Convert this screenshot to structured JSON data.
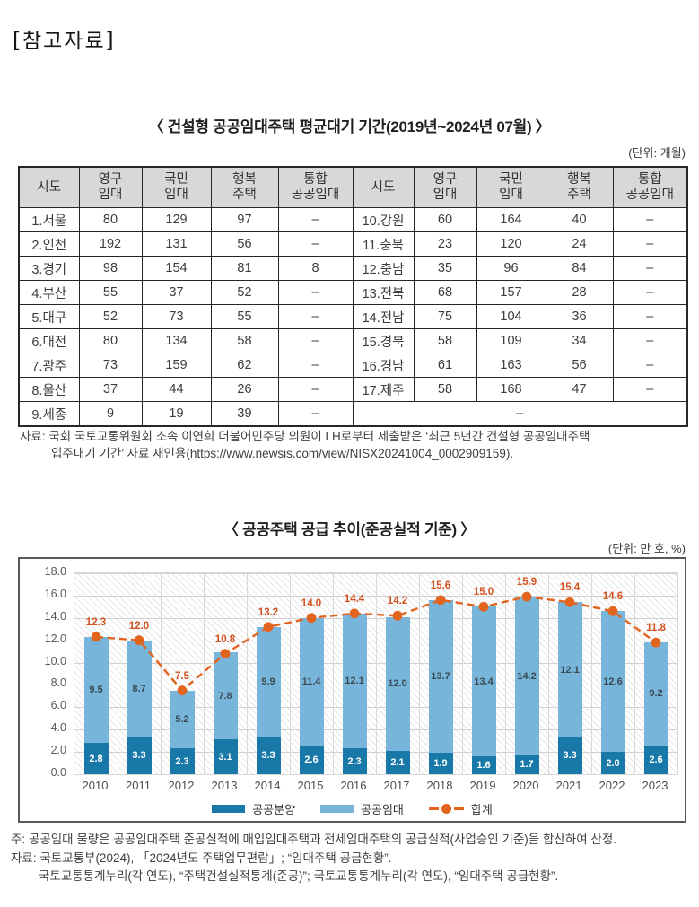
{
  "page": {
    "ref_label": "[참고자료]"
  },
  "table_section": {
    "title": "〈 건설형 공공임대주택 평균대기 기간(2019년~2024년 07월) 〉",
    "unit": "(단위: 개월)",
    "col_headers": [
      {
        "lines": [
          "시도"
        ]
      },
      {
        "lines": [
          "영구",
          "임대"
        ]
      },
      {
        "lines": [
          "국민",
          "임대"
        ]
      },
      {
        "lines": [
          "행복",
          "주택"
        ]
      },
      {
        "lines": [
          "통합",
          "공공임대"
        ]
      }
    ],
    "left_rows": [
      [
        "1.서울",
        "80",
        "129",
        "97",
        "–"
      ],
      [
        "2.인천",
        "192",
        "131",
        "56",
        "–"
      ],
      [
        "3.경기",
        "98",
        "154",
        "81",
        "8"
      ],
      [
        "4.부산",
        "55",
        "37",
        "52",
        "–"
      ],
      [
        "5.대구",
        "52",
        "73",
        "55",
        "–"
      ],
      [
        "6.대전",
        "80",
        "134",
        "58",
        "–"
      ],
      [
        "7.광주",
        "73",
        "159",
        "62",
        "–"
      ],
      [
        "8.울산",
        "37",
        "44",
        "26",
        "–"
      ],
      [
        "9.세종",
        "9",
        "19",
        "39",
        "–"
      ]
    ],
    "right_rows": [
      [
        "10.강원",
        "60",
        "164",
        "40",
        "–"
      ],
      [
        "11.충북",
        "23",
        "120",
        "24",
        "–"
      ],
      [
        "12.충남",
        "35",
        "96",
        "84",
        "–"
      ],
      [
        "13.전북",
        "68",
        "157",
        "28",
        "–"
      ],
      [
        "14.전남",
        "75",
        "104",
        "36",
        "–"
      ],
      [
        "15.경북",
        "58",
        "109",
        "34",
        "–"
      ],
      [
        "16.경남",
        "61",
        "163",
        "56",
        "–"
      ],
      [
        "17.제주",
        "58",
        "168",
        "47",
        "–"
      ]
    ],
    "right_footer": "–",
    "source_lines": [
      "자료: 국회 국토교통위원회 소속 이연희 더불어민주당 의원이 LH로부터 제출받은 ‘최근 5년간 건설형 공공임대주택",
      "입주대기 기간’ 자료 재인용(https://www.newsis.com/view/NISX20241004_0002909159)."
    ]
  },
  "chart_section": {
    "title": "〈 공공주택 공급 추이(준공실적 기준) 〉",
    "unit": "(단위: 만 호, %)",
    "notes": [
      "주: 공공임대 물량은 공공임대주택 준공실적에 매입임대주택과 전세임대주택의 공급실적(사업승인 기준)을 합산하여 산정.",
      "자료: 국토교통부(2024), 「2024년도 주택업무편람」; “임대주택 공급현황”.",
      "국토교통통계누리(각 연도), “주택건설실적통계(준공)”; 국토교통통계누리(각 연도), “임대주택 공급현황”."
    ]
  },
  "chart_data": {
    "type": "bar",
    "stacked": true,
    "title": "공공주택 공급 추이(준공실적 기준)",
    "unit": "만 호, %",
    "categories": [
      "2010",
      "2011",
      "2012",
      "2013",
      "2014",
      "2015",
      "2016",
      "2017",
      "2018",
      "2019",
      "2020",
      "2021",
      "2022",
      "2023"
    ],
    "series": [
      {
        "name": "공공분양",
        "type": "bar",
        "color": "#1878a8",
        "label_color": "#ffffff",
        "values": [
          2.8,
          3.3,
          2.3,
          3.1,
          3.3,
          2.6,
          2.3,
          2.1,
          1.9,
          1.6,
          1.7,
          3.3,
          2.0,
          2.6
        ]
      },
      {
        "name": "공공임대",
        "type": "bar",
        "color": "#77b5da",
        "label_color": "#3a4a55",
        "values": [
          9.5,
          8.7,
          5.2,
          7.8,
          9.9,
          11.4,
          12.1,
          12.0,
          13.7,
          13.4,
          14.2,
          12.1,
          12.6,
          9.2
        ]
      },
      {
        "name": "합계",
        "type": "line",
        "color": "#e2641e",
        "label_color": "#d4521f",
        "values": [
          12.3,
          12.0,
          7.5,
          10.8,
          13.2,
          14.0,
          14.4,
          14.2,
          15.6,
          15.0,
          15.9,
          15.4,
          14.6,
          11.8
        ]
      }
    ],
    "ylim": [
      0,
      18
    ],
    "ytick_step": 2,
    "grid": true,
    "legend_position": "bottom"
  }
}
